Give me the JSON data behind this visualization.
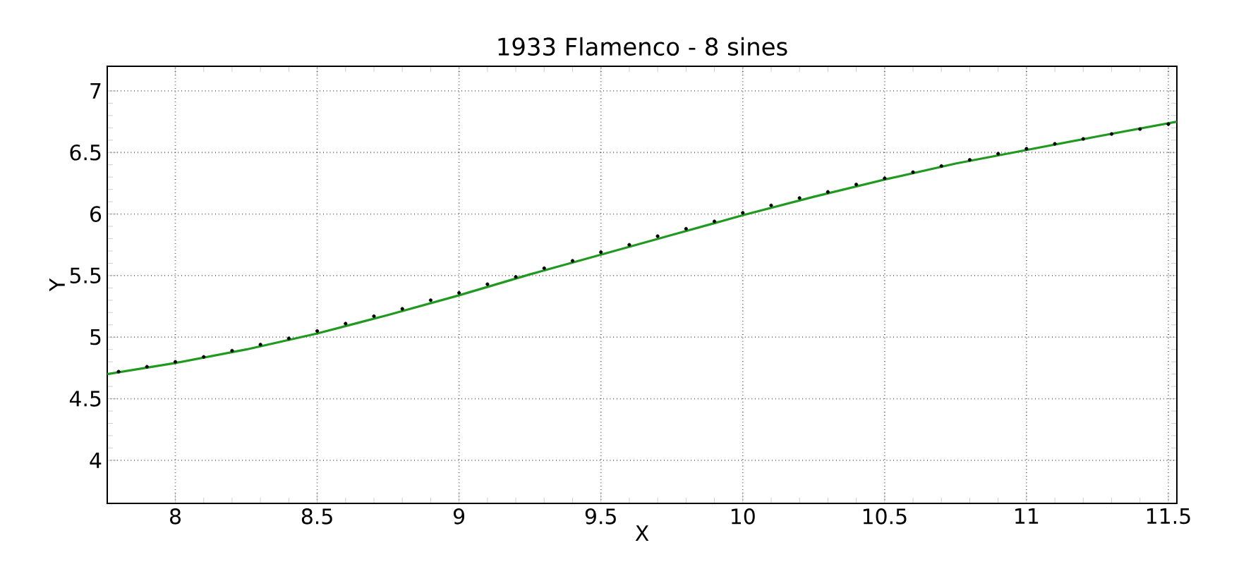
{
  "chart_data": {
    "type": "line",
    "title": "1933 Flamenco - 8 sines",
    "xlabel": "X",
    "ylabel": "Y",
    "xlim": [
      7.76,
      11.53
    ],
    "ylim": [
      3.65,
      7.2
    ],
    "xticks": [
      8,
      8.5,
      9,
      9.5,
      10,
      10.5,
      11,
      11.5
    ],
    "yticks": [
      4,
      4.5,
      5,
      5.5,
      6,
      6.5,
      7
    ],
    "grid": true,
    "series": [
      {
        "type": "scatter",
        "marker": "circle",
        "color": "#000000",
        "x": [
          7.8,
          7.9,
          8.0,
          8.1,
          8.2,
          8.3,
          8.4,
          8.5,
          8.6,
          8.7,
          8.8,
          8.9,
          9.0,
          9.1,
          9.2,
          9.3,
          9.4,
          9.5,
          9.6,
          9.7,
          9.8,
          9.9,
          10.0,
          10.1,
          10.2,
          10.3,
          10.4,
          10.5,
          10.6,
          10.7,
          10.8,
          10.9,
          11.0,
          11.1,
          11.2,
          11.3,
          11.4,
          11.5
        ],
        "values": [
          4.72,
          4.76,
          4.8,
          4.84,
          4.89,
          4.94,
          4.99,
          5.05,
          5.11,
          5.17,
          5.23,
          5.3,
          5.36,
          5.43,
          5.49,
          5.56,
          5.62,
          5.69,
          5.75,
          5.82,
          5.88,
          5.94,
          6.01,
          6.07,
          6.13,
          6.18,
          6.24,
          6.29,
          6.34,
          6.39,
          6.44,
          6.49,
          6.53,
          6.57,
          6.61,
          6.65,
          6.69,
          6.73
        ]
      },
      {
        "marker": "none",
        "line_style": "solid",
        "color": "#1f9a1f",
        "x": [
          7.76,
          8,
          8.25,
          8.5,
          8.75,
          9,
          9.25,
          9.5,
          9.75,
          10,
          10.25,
          10.5,
          10.75,
          11,
          11.25,
          11.53
        ],
        "values": [
          4.7,
          4.79,
          4.9,
          5.03,
          5.18,
          5.34,
          5.51,
          5.67,
          5.83,
          5.99,
          6.14,
          6.28,
          6.41,
          6.52,
          6.63,
          6.75
        ]
      }
    ]
  }
}
